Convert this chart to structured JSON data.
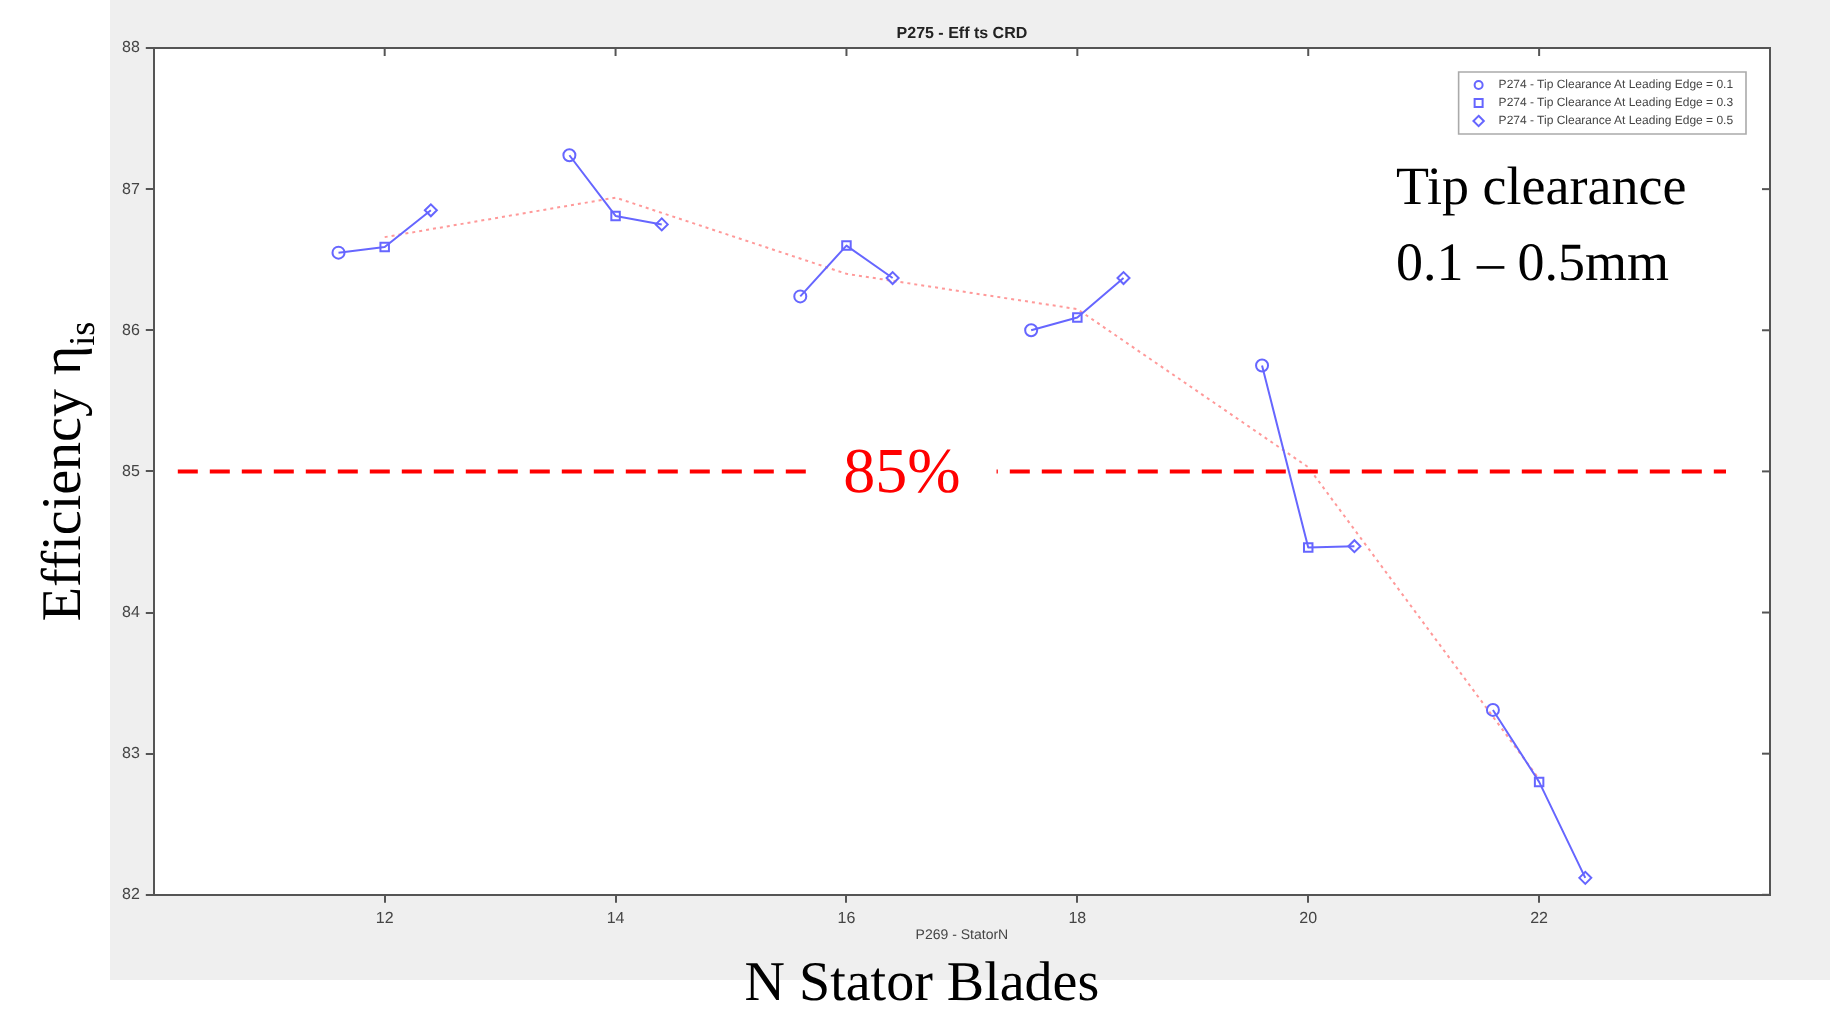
{
  "chart_data": {
    "type": "line",
    "title": "P275 - Eff ts CRD",
    "xlabel": "N Stator Blades",
    "ylabel": "Efficiency η$_{is}$",
    "xlim": [
      10,
      24
    ],
    "xticks": [
      12,
      14,
      16,
      18,
      20,
      22
    ],
    "ylim": [
      82,
      88
    ],
    "yticks": [
      82,
      83,
      84,
      85,
      86,
      87,
      88
    ],
    "grid": false,
    "legend": "top right",
    "series": [
      {
        "name": "P274 - Tip Clearance At Leading Edge = 0.1",
        "type": "scatter",
        "marker": "circle",
        "color": "#6666ff",
        "x": [
          11.6,
          13.6,
          15.6,
          17.6,
          19.6,
          21.6
        ],
        "values": [
          86.55,
          87.24,
          86.24,
          86.0,
          85.75,
          83.31
        ]
      },
      {
        "name": "P274 - Tip Clearance At Leading Edge = 0.3",
        "type": "scatter",
        "marker": "square",
        "color": "#6666ff",
        "x": [
          12,
          14,
          16,
          18,
          20,
          22
        ],
        "values": [
          86.59,
          86.81,
          86.6,
          86.09,
          84.46,
          82.8
        ]
      },
      {
        "name": "P274 - Tip Clearance At Leading Edge = 0.5",
        "type": "scatter",
        "marker": "diamond",
        "color": "#6666ff",
        "x": [
          12.4,
          14.4,
          16.4,
          18.4,
          20.4,
          22.4
        ],
        "values": [
          86.85,
          86.75,
          86.37,
          86.37,
          84.47,
          82.12
        ]
      },
      {
        "type": "line",
        "marker": "none",
        "line_style": "solid",
        "color": "#6666ff",
        "x": [
          11.6,
          12,
          12.4,
          13,
          13.6,
          14,
          14.4,
          15,
          15.6,
          16,
          16.4,
          17,
          17.6,
          18,
          18.4,
          19,
          19.6,
          20,
          20.4,
          21,
          21.6,
          22,
          22.4
        ],
        "values": [
          86.55,
          86.59,
          86.85,
          null,
          87.24,
          86.81,
          86.75,
          null,
          86.24,
          86.6,
          86.37,
          null,
          86.0,
          86.09,
          86.37,
          null,
          85.75,
          84.46,
          84.47,
          null,
          83.31,
          82.8,
          82.12
        ]
      },
      {
        "type": "line",
        "marker": "none",
        "line_style": "dotted",
        "color": "#ff9999",
        "x": [
          12,
          14,
          16,
          18,
          20,
          22
        ],
        "values": [
          86.66,
          86.94,
          86.4,
          86.15,
          85.03,
          82.82
        ]
      }
    ],
    "ref_lines": [
      {
        "axis": "y",
        "value": 85,
        "label": "85%",
        "color": "#ff0000",
        "line_style": "dashed"
      }
    ],
    "annotations": [
      "P269 - StatorN",
      "Tip clearance\n0.1 – 0.5mm"
    ]
  }
}
